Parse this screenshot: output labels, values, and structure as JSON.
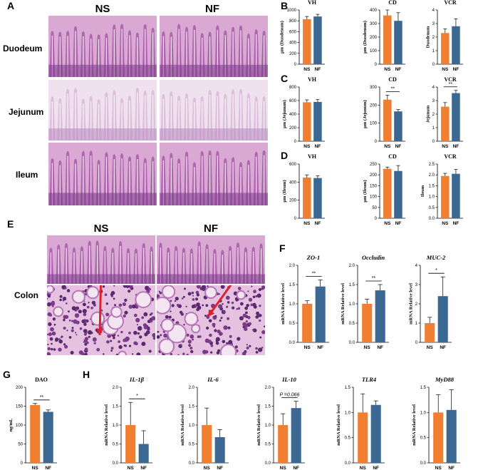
{
  "colors": {
    "ns": "#F07F32",
    "nf": "#3B6893",
    "axis": "#000000"
  },
  "panels": {
    "A": {
      "letter": "A",
      "columns": [
        "NS",
        "NF"
      ],
      "rows": [
        {
          "label": "Duodeum",
          "tone": "dense"
        },
        {
          "label": "Jejunum",
          "tone": "light"
        },
        {
          "label": "Ileum",
          "tone": "dense"
        }
      ]
    },
    "B": {
      "letter": "B"
    },
    "C": {
      "letter": "C"
    },
    "D": {
      "letter": "D"
    },
    "E": {
      "letter": "E",
      "columns": [
        "NS",
        "NF"
      ],
      "row_label": "Colon"
    },
    "F": {
      "letter": "F"
    },
    "G": {
      "letter": "G"
    },
    "H": {
      "letter": "H"
    }
  },
  "chart_data": [
    {
      "id": "B-VH",
      "type": "bar",
      "title": "VH",
      "title_style": "plain",
      "ylabel": "μm (Duodenum)",
      "categories": [
        "NS",
        "NF"
      ],
      "values": [
        830,
        880
      ],
      "errors": [
        50,
        40
      ],
      "ylim": [
        0,
        1000
      ],
      "yticks": [
        0,
        200,
        400,
        600,
        800,
        1000
      ],
      "sig": ""
    },
    {
      "id": "B-CD",
      "type": "bar",
      "title": "CD",
      "title_style": "plain",
      "ylabel": "μm (Duodenum)",
      "categories": [
        "NS",
        "NF"
      ],
      "values": [
        360,
        320
      ],
      "errors": [
        40,
        60
      ],
      "ylim": [
        0,
        400
      ],
      "yticks": [
        0,
        100,
        200,
        300,
        400
      ],
      "sig": ""
    },
    {
      "id": "B-VCR",
      "type": "bar",
      "title": "VCR",
      "title_style": "plain",
      "ylabel": "Duodenum",
      "categories": [
        "NS",
        "NF"
      ],
      "values": [
        2.3,
        2.8
      ],
      "errors": [
        0.3,
        0.55
      ],
      "ylim": [
        0,
        4
      ],
      "yticks": [
        0,
        1,
        2,
        3,
        4
      ],
      "sig": ""
    },
    {
      "id": "C-VH",
      "type": "bar",
      "title": "VH",
      "title_style": "plain",
      "ylabel": "μm (Jejunum)",
      "categories": [
        "NS",
        "NF"
      ],
      "values": [
        575,
        580
      ],
      "errors": [
        35,
        35
      ],
      "ylim": [
        0,
        800
      ],
      "yticks": [
        0,
        200,
        400,
        600,
        800
      ],
      "sig": ""
    },
    {
      "id": "C-CD",
      "type": "bar",
      "title": "CD",
      "title_style": "plain",
      "ylabel": "μm (Jejunum)",
      "categories": [
        "NS",
        "NF"
      ],
      "values": [
        230,
        165
      ],
      "errors": [
        25,
        10
      ],
      "ylim": [
        0,
        300
      ],
      "yticks": [
        0,
        100,
        200,
        300
      ],
      "sig": "**"
    },
    {
      "id": "C-VCR",
      "type": "bar",
      "title": "VCR",
      "title_style": "plain",
      "ylabel": "Jejunum",
      "categories": [
        "NS",
        "NF"
      ],
      "values": [
        2.55,
        3.55
      ],
      "errors": [
        0.3,
        0.2
      ],
      "ylim": [
        0,
        4
      ],
      "yticks": [
        0,
        1,
        2,
        3,
        4
      ],
      "sig": "**"
    },
    {
      "id": "D-VH",
      "type": "bar",
      "title": "VH",
      "title_style": "plain",
      "ylabel": "μm (Ileum)",
      "categories": [
        "NS",
        "NF"
      ],
      "values": [
        450,
        445
      ],
      "errors": [
        30,
        25
      ],
      "ylim": [
        0,
        600
      ],
      "yticks": [
        0,
        200,
        400,
        600
      ],
      "sig": ""
    },
    {
      "id": "D-CD",
      "type": "bar",
      "title": "CD",
      "title_style": "plain",
      "ylabel": "μm (Ileum)",
      "categories": [
        "NS",
        "NF"
      ],
      "values": [
        228,
        218
      ],
      "errors": [
        8,
        25
      ],
      "ylim": [
        0,
        250
      ],
      "yticks": [
        0,
        50,
        100,
        150,
        200,
        250
      ],
      "sig": ""
    },
    {
      "id": "D-VCR",
      "type": "bar",
      "title": "VCR",
      "title_style": "plain",
      "ylabel": "Ileum",
      "categories": [
        "NS",
        "NF"
      ],
      "values": [
        1.95,
        2.05
      ],
      "errors": [
        0.12,
        0.2
      ],
      "ylim": [
        0,
        2.5
      ],
      "yticks": [
        0.0,
        0.5,
        1.0,
        1.5,
        2.0,
        2.5
      ],
      "sig": ""
    },
    {
      "id": "F-ZO1",
      "type": "bar",
      "title": "ZO-1",
      "title_style": "italic",
      "ylabel": "mRNA Relative level",
      "categories": [
        "NS",
        "NF"
      ],
      "values": [
        1.0,
        1.45
      ],
      "errors": [
        0.08,
        0.17
      ],
      "ylim": [
        0,
        2.0
      ],
      "yticks": [
        0.0,
        0.5,
        1.0,
        1.5,
        2.0
      ],
      "sig": "**"
    },
    {
      "id": "F-Occludin",
      "type": "bar",
      "title": "Occludin",
      "title_style": "italic",
      "ylabel": "mRNA Relative level",
      "categories": [
        "NS",
        "NF"
      ],
      "values": [
        1.0,
        1.35
      ],
      "errors": [
        0.12,
        0.15
      ],
      "ylim": [
        0,
        2.0
      ],
      "yticks": [
        0.0,
        0.5,
        1.0,
        1.5,
        2.0
      ],
      "sig": "**"
    },
    {
      "id": "F-MUC2",
      "type": "bar",
      "title": "MUC-2",
      "title_style": "italic",
      "ylabel": "mRNA Relative level",
      "categories": [
        "NS",
        "NF"
      ],
      "values": [
        1.0,
        2.4
      ],
      "errors": [
        0.3,
        1.0
      ],
      "ylim": [
        0,
        4
      ],
      "yticks": [
        0,
        1,
        2,
        3,
        4
      ],
      "sig": "*"
    },
    {
      "id": "G-DAO",
      "type": "bar",
      "title": "DAO",
      "title_style": "plain",
      "ylabel": "ng/mL",
      "categories": [
        "NS",
        "NF"
      ],
      "values": [
        153,
        135
      ],
      "errors": [
        4,
        5
      ],
      "ylim": [
        0,
        200
      ],
      "yticks": [
        0,
        50,
        100,
        150,
        200
      ],
      "sig": "**"
    },
    {
      "id": "H-IL1b",
      "type": "bar",
      "title": "IL-1β",
      "title_style": "italic",
      "ylabel": "mRNA Relative level",
      "categories": [
        "NS",
        "NF"
      ],
      "values": [
        1.0,
        0.5
      ],
      "errors": [
        0.6,
        0.35
      ],
      "ylim": [
        0,
        2.0
      ],
      "yticks": [
        0.0,
        0.5,
        1.0,
        1.5,
        2.0
      ],
      "sig": "*"
    },
    {
      "id": "H-IL6",
      "type": "bar",
      "title": "IL-6",
      "title_style": "italic",
      "ylabel": "mRNA Relative level",
      "categories": [
        "NS",
        "NF"
      ],
      "values": [
        1.0,
        0.68
      ],
      "errors": [
        0.45,
        0.2
      ],
      "ylim": [
        0,
        2.0
      ],
      "yticks": [
        0.0,
        0.5,
        1.0,
        1.5,
        2.0
      ],
      "sig": ""
    },
    {
      "id": "H-IL10",
      "type": "bar",
      "title": "IL-10",
      "title_style": "italic",
      "ylabel": "mRNA Relative level",
      "categories": [
        "NS",
        "NF"
      ],
      "values": [
        1.0,
        1.45
      ],
      "errors": [
        0.3,
        0.18
      ],
      "ylim": [
        0,
        2.0
      ],
      "yticks": [
        0.0,
        0.5,
        1.0,
        1.5,
        2.0
      ],
      "sig": "P =0.066"
    },
    {
      "id": "H-TLR4",
      "type": "bar",
      "title": "TLR4",
      "title_style": "italic",
      "ylabel": "mRNA Relative level",
      "categories": [
        "NS",
        "NF"
      ],
      "values": [
        1.0,
        1.15
      ],
      "errors": [
        0.37,
        0.08
      ],
      "ylim": [
        0,
        1.5
      ],
      "yticks": [
        0.0,
        0.5,
        1.0,
        1.5
      ],
      "sig": ""
    },
    {
      "id": "H-MyD88",
      "type": "bar",
      "title": "MyD88",
      "title_style": "italic",
      "ylabel": "mRNA Relative level",
      "categories": [
        "NS",
        "NF"
      ],
      "values": [
        1.0,
        1.05
      ],
      "errors": [
        0.35,
        0.4
      ],
      "ylim": [
        0,
        1.5
      ],
      "yticks": [
        0.0,
        0.5,
        1.0,
        1.5
      ],
      "sig": ""
    }
  ]
}
